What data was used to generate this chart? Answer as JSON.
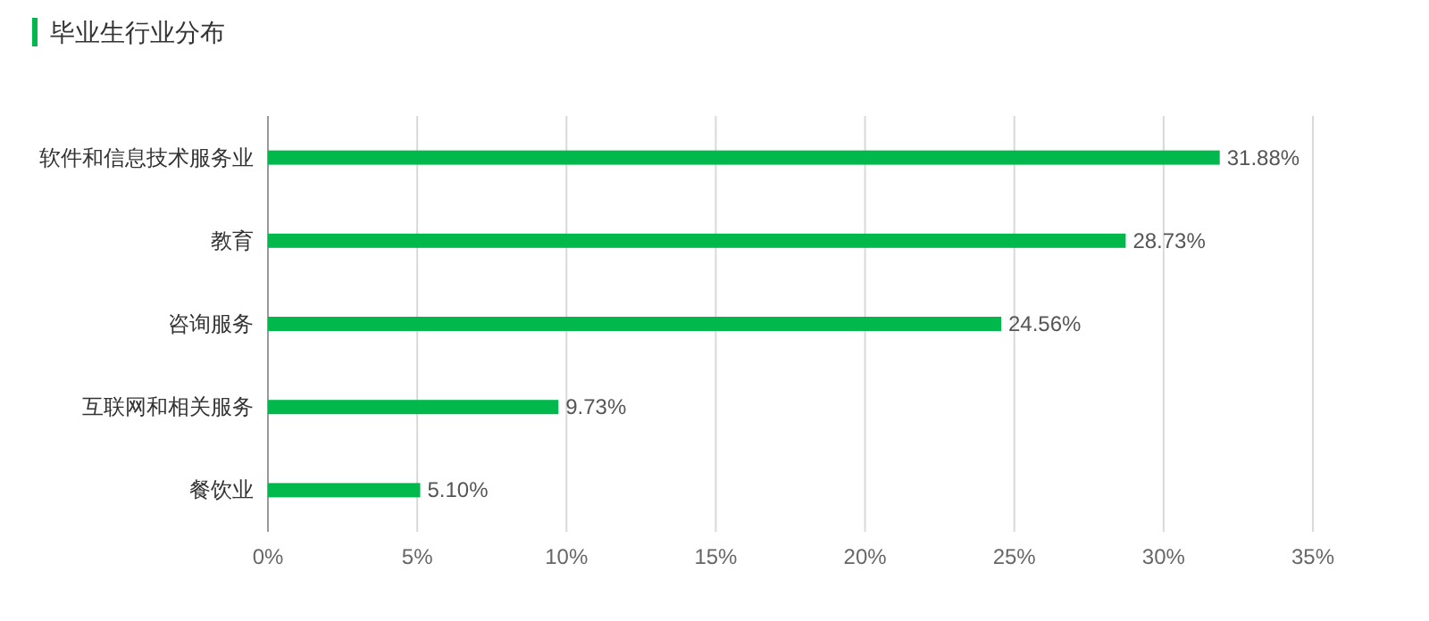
{
  "chart_data": {
    "type": "bar",
    "orientation": "horizontal",
    "title": "毕业生行业分布",
    "categories": [
      "软件和信息技术服务业",
      "教育",
      "咨询服务",
      "互联网和相关服务",
      "餐饮业"
    ],
    "series": [
      {
        "color": "#00b84c",
        "values": [
          31.88,
          28.73,
          24.56,
          9.73,
          5.1
        ],
        "value_labels": [
          "31.88%",
          "28.73%",
          "24.56%",
          "9.73%",
          "5.10%"
        ]
      }
    ],
    "xlim": [
      0,
      35
    ],
    "xticks": [
      {
        "value": 0,
        "label": "0%"
      },
      {
        "value": 5,
        "label": "5%"
      },
      {
        "value": 10,
        "label": "10%"
      },
      {
        "value": 15,
        "label": "15%"
      },
      {
        "value": 20,
        "label": "20%"
      },
      {
        "value": 25,
        "label": "25%"
      },
      {
        "value": 30,
        "label": "30%"
      },
      {
        "value": 35,
        "label": "35%"
      }
    ],
    "grid": "x"
  }
}
